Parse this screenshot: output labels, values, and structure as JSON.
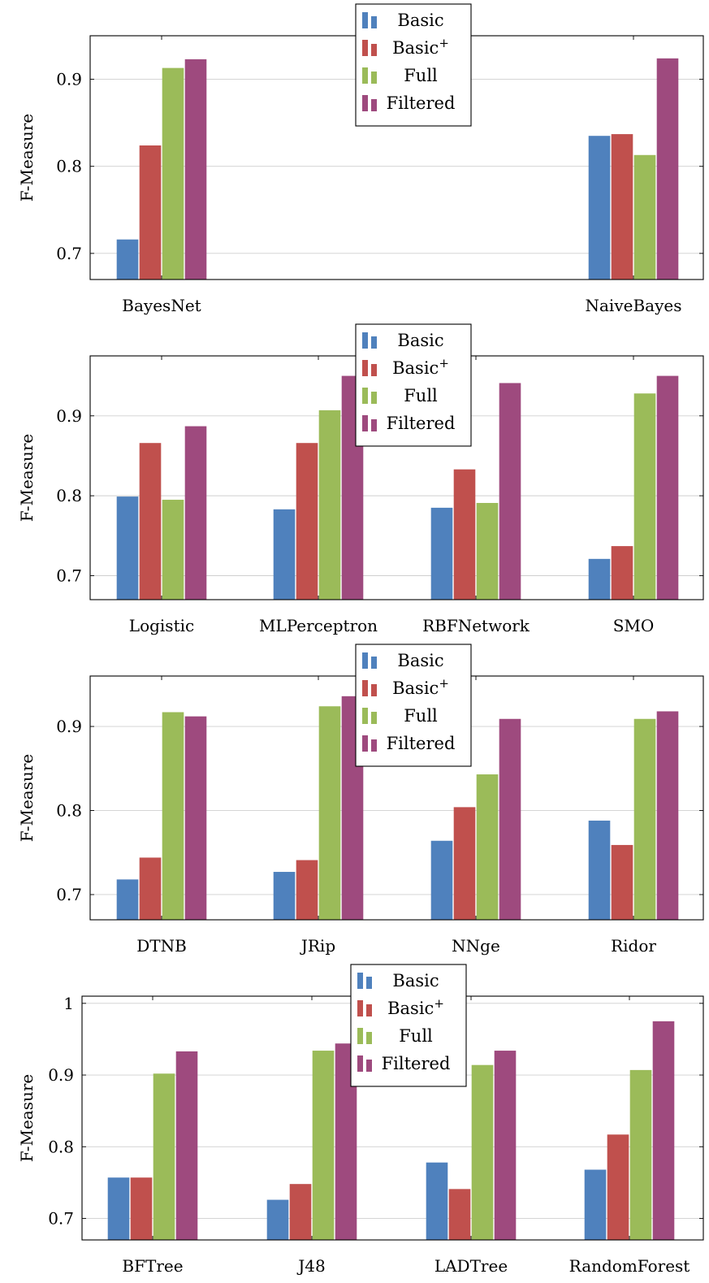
{
  "colors": {
    "Basic": "#4f81bd",
    "Basic+": "#c0504d",
    "Full": "#9bbb59",
    "Filtered": "#9e4a7e",
    "grid": "#cfcfcf"
  },
  "chart_data": [
    {
      "type": "bar",
      "ylabel": "F-Measure",
      "ylim": [
        0.67,
        0.95
      ],
      "yticks": [
        "0.7",
        "0.8",
        "0.9"
      ],
      "categories": [
        "BayesNet",
        "NaiveBayes"
      ],
      "grid": true,
      "legend": "top-center",
      "series": [
        {
          "name": "Basic",
          "values": [
            0.716,
            0.835
          ]
        },
        {
          "name": "Basic+",
          "values": [
            0.824,
            0.837
          ]
        },
        {
          "name": "Full",
          "values": [
            0.913,
            0.813
          ]
        },
        {
          "name": "Filtered",
          "values": [
            0.923,
            0.924
          ]
        }
      ]
    },
    {
      "type": "bar",
      "ylabel": "F-Measure",
      "ylim": [
        0.67,
        0.975
      ],
      "yticks": [
        "0.7",
        "0.8",
        "0.9"
      ],
      "categories": [
        "Logistic",
        "MLPerceptron",
        "RBFNetwork",
        "SMO"
      ],
      "grid": true,
      "legend": "top-center",
      "series": [
        {
          "name": "Basic",
          "values": [
            0.799,
            0.783,
            0.785,
            0.721
          ]
        },
        {
          "name": "Basic+",
          "values": [
            0.866,
            0.866,
            0.833,
            0.737
          ]
        },
        {
          "name": "Full",
          "values": [
            0.795,
            0.907,
            0.791,
            0.928
          ]
        },
        {
          "name": "Filtered",
          "values": [
            0.887,
            0.95,
            0.941,
            0.95
          ]
        }
      ]
    },
    {
      "type": "bar",
      "ylabel": "F-Measure",
      "ylim": [
        0.67,
        0.96
      ],
      "yticks": [
        "0.7",
        "0.8",
        "0.9"
      ],
      "categories": [
        "DTNB",
        "JRip",
        "NNge",
        "Ridor"
      ],
      "grid": true,
      "legend": "top-center",
      "series": [
        {
          "name": "Basic",
          "values": [
            0.718,
            0.727,
            0.764,
            0.788
          ]
        },
        {
          "name": "Basic+",
          "values": [
            0.744,
            0.741,
            0.804,
            0.759
          ]
        },
        {
          "name": "Full",
          "values": [
            0.917,
            0.924,
            0.843,
            0.909
          ]
        },
        {
          "name": "Filtered",
          "values": [
            0.912,
            0.936,
            0.909,
            0.918
          ]
        }
      ]
    },
    {
      "type": "bar",
      "ylabel": "F-Measure",
      "ylim": [
        0.67,
        1.01
      ],
      "yticks": [
        "0.7",
        "0.8",
        "0.9",
        "1"
      ],
      "categories": [
        "BFTree",
        "J48",
        "LADTree",
        "RandomForest"
      ],
      "grid": true,
      "legend": "top-center",
      "series": [
        {
          "name": "Basic",
          "values": [
            0.757,
            0.726,
            0.778,
            0.768
          ]
        },
        {
          "name": "Basic+",
          "values": [
            0.757,
            0.748,
            0.741,
            0.817
          ]
        },
        {
          "name": "Full",
          "values": [
            0.902,
            0.934,
            0.914,
            0.907
          ]
        },
        {
          "name": "Filtered",
          "values": [
            0.933,
            0.944,
            0.934,
            0.975
          ]
        }
      ]
    }
  ]
}
